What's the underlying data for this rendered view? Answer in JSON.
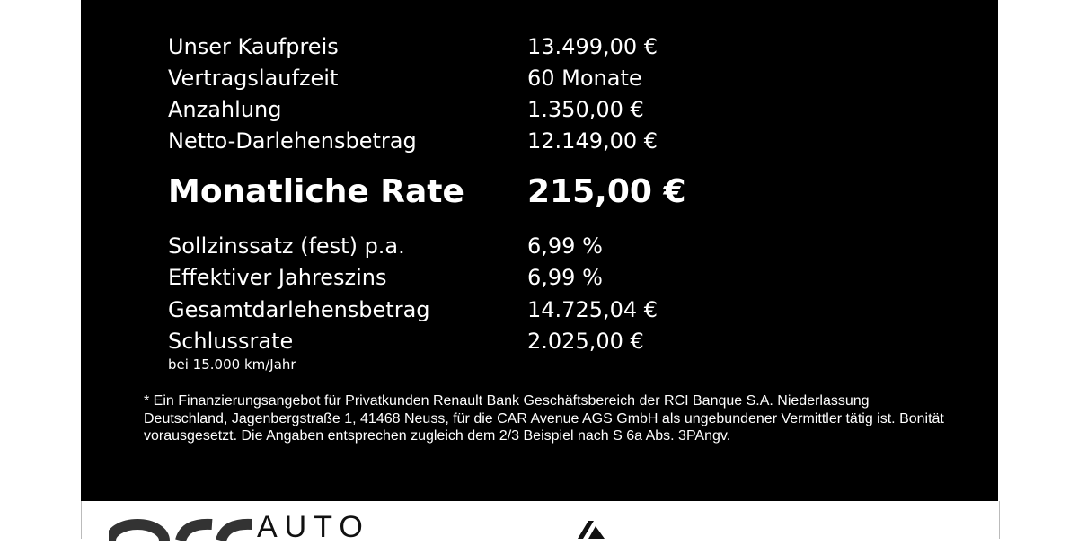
{
  "rows": [
    {
      "label": "Unser Kaufpreis",
      "value": "13.499,00 €"
    },
    {
      "label": "Vertragslaufzeit",
      "value": "60 Monate"
    },
    {
      "label": "Anzahlung",
      "value": "1.350,00 €"
    },
    {
      "label": "Netto-Darlehensbetrag",
      "value": "12.149,00 €"
    }
  ],
  "highlight": {
    "label": "Monatliche Rate",
    "value": "215,00 €"
  },
  "rows2": [
    {
      "label": "Sollzinssatz (fest) p.a.",
      "value": "6,99 %"
    },
    {
      "label": "Effektiver Jahreszins",
      "value": "6,99 %"
    },
    {
      "label": "Gesamtdarlehensbetrag",
      "value": "14.725,04 €"
    },
    {
      "label": "Schlussrate",
      "value": "2.025,00 €"
    }
  ],
  "note": "bei 15.000 km/Jahr",
  "disclaimer": "* Ein Finanzierungsangebot für Privatkunden Renault Bank Geschäftsbereich der RCI Banque S.A. Niederlassung Deutschland, Jagenbergstraße 1, 41468 Neuss, für die CAR Avenue AGS GmbH als ungebundener Vermittler tätig ist. Bonität vorausgesetzt. Die Angaben entsprechen zugleich dem 2/3 Beispiel nach S 6a Abs. 3PAngv.",
  "footer": {
    "logo_text": "AUTO"
  }
}
